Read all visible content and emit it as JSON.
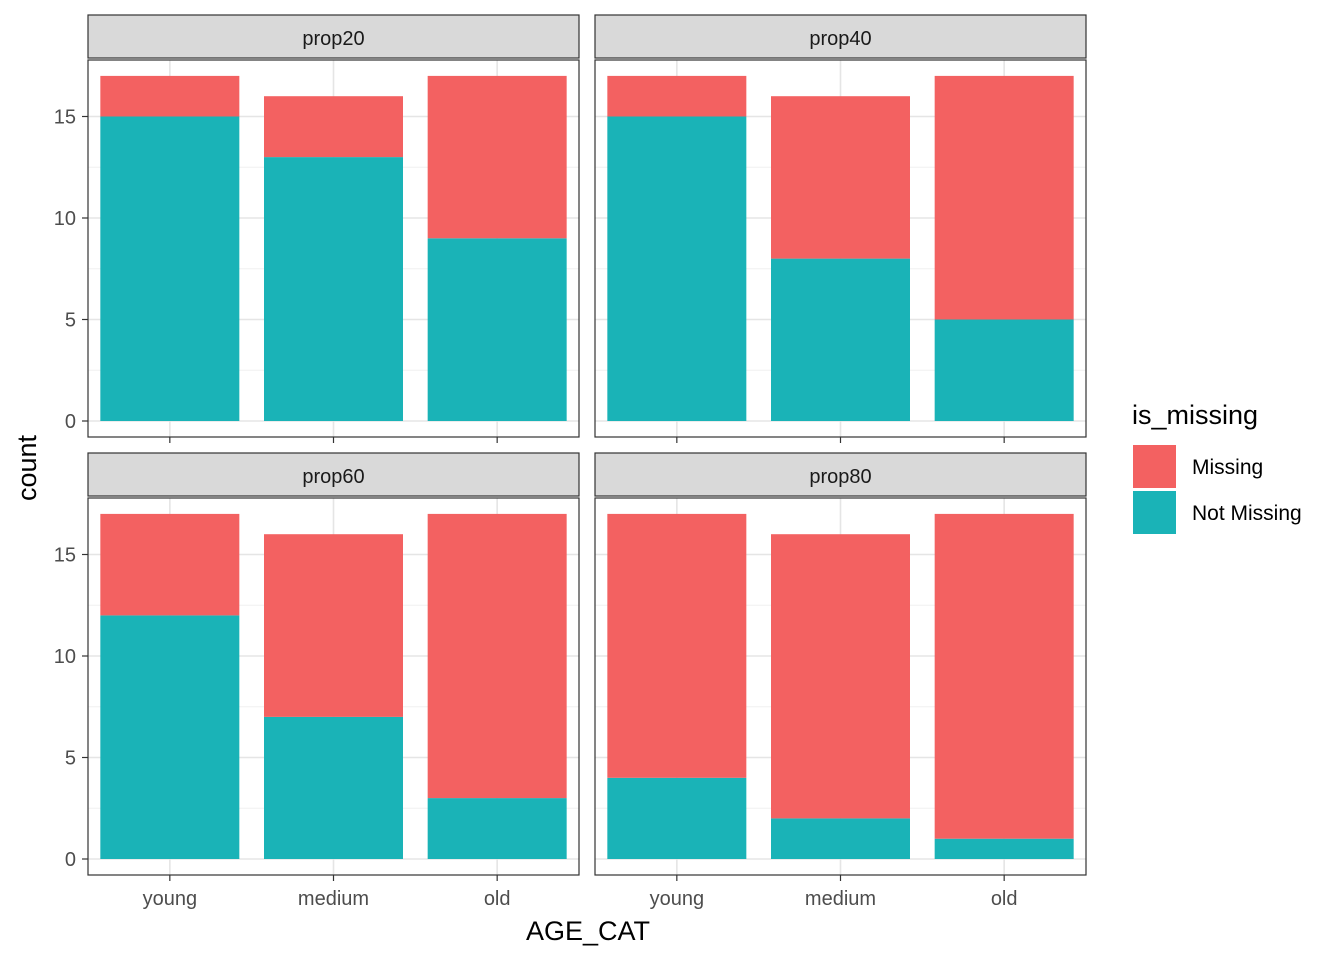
{
  "chart_data": {
    "type": "bar",
    "stacked": true,
    "xlabel": "AGE_CAT",
    "ylabel": "count",
    "ylim": [
      0,
      17
    ],
    "yticks": [
      0,
      5,
      10,
      15
    ],
    "categories": [
      "young",
      "medium",
      "old"
    ],
    "grid": true,
    "legend": {
      "title": "is_missing",
      "position": "right",
      "entries": [
        {
          "label": "Missing",
          "color": "#F36161"
        },
        {
          "label": "Not Missing",
          "color": "#1AB3B7"
        }
      ]
    },
    "facets": [
      {
        "label": "prop20",
        "series": [
          {
            "name": "Missing",
            "values": [
              2,
              3,
              8
            ]
          },
          {
            "name": "Not Missing",
            "values": [
              15,
              13,
              9
            ]
          }
        ]
      },
      {
        "label": "prop40",
        "series": [
          {
            "name": "Missing",
            "values": [
              2,
              8,
              12
            ]
          },
          {
            "name": "Not Missing",
            "values": [
              15,
              8,
              5
            ]
          }
        ]
      },
      {
        "label": "prop60",
        "series": [
          {
            "name": "Missing",
            "values": [
              5,
              9,
              14
            ]
          },
          {
            "name": "Not Missing",
            "values": [
              12,
              7,
              3
            ]
          }
        ]
      },
      {
        "label": "prop80",
        "series": [
          {
            "name": "Missing",
            "values": [
              13,
              14,
              16
            ]
          },
          {
            "name": "Not Missing",
            "values": [
              4,
              2,
              1
            ]
          }
        ]
      }
    ]
  }
}
